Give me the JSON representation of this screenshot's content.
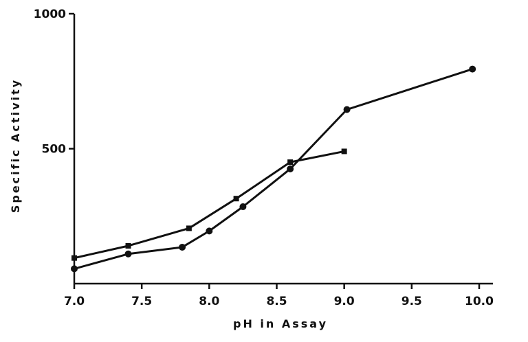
{
  "chart_data": {
    "type": "line",
    "xlabel": "pH in Assay",
    "ylabel": "Specific Activity",
    "xlim": [
      7.0,
      10.0
    ],
    "ylim": [
      0,
      1000
    ],
    "x_ticks": [
      "7.0",
      "7.5",
      "8.0",
      "8.5",
      "9.0",
      "9.5",
      "10.0"
    ],
    "y_ticks": [
      "500",
      "1000"
    ],
    "x_tick_values": [
      7.0,
      7.5,
      8.0,
      8.5,
      9.0,
      9.5,
      10.0
    ],
    "y_tick_values": [
      500,
      1000
    ],
    "grid": false,
    "series": [
      {
        "marker": "square",
        "x": [
          7.0,
          7.4,
          7.85,
          8.2,
          8.6,
          9.0
        ],
        "y": [
          95,
          140,
          205,
          315,
          450,
          490
        ]
      },
      {
        "marker": "circle",
        "x": [
          7.0,
          7.4,
          7.8,
          8.0,
          8.25,
          8.6,
          9.02,
          9.95
        ],
        "y": [
          55,
          110,
          135,
          195,
          285,
          425,
          645,
          795
        ]
      }
    ]
  }
}
